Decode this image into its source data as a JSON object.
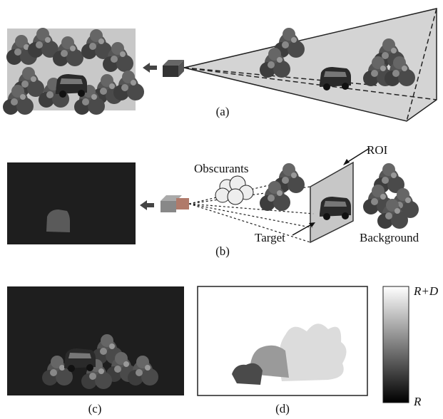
{
  "panels": {
    "a": {
      "caption": "(a)"
    },
    "b": {
      "caption": "(b)",
      "obscurants_label": "Obscurants",
      "roi_label": "ROI",
      "target_label": "Target",
      "background_label": "Background"
    },
    "c": {
      "caption": "(c)"
    },
    "d": {
      "caption": "(d)"
    }
  },
  "colorbar": {
    "top_label": "R+D",
    "bottom_label": "R"
  }
}
